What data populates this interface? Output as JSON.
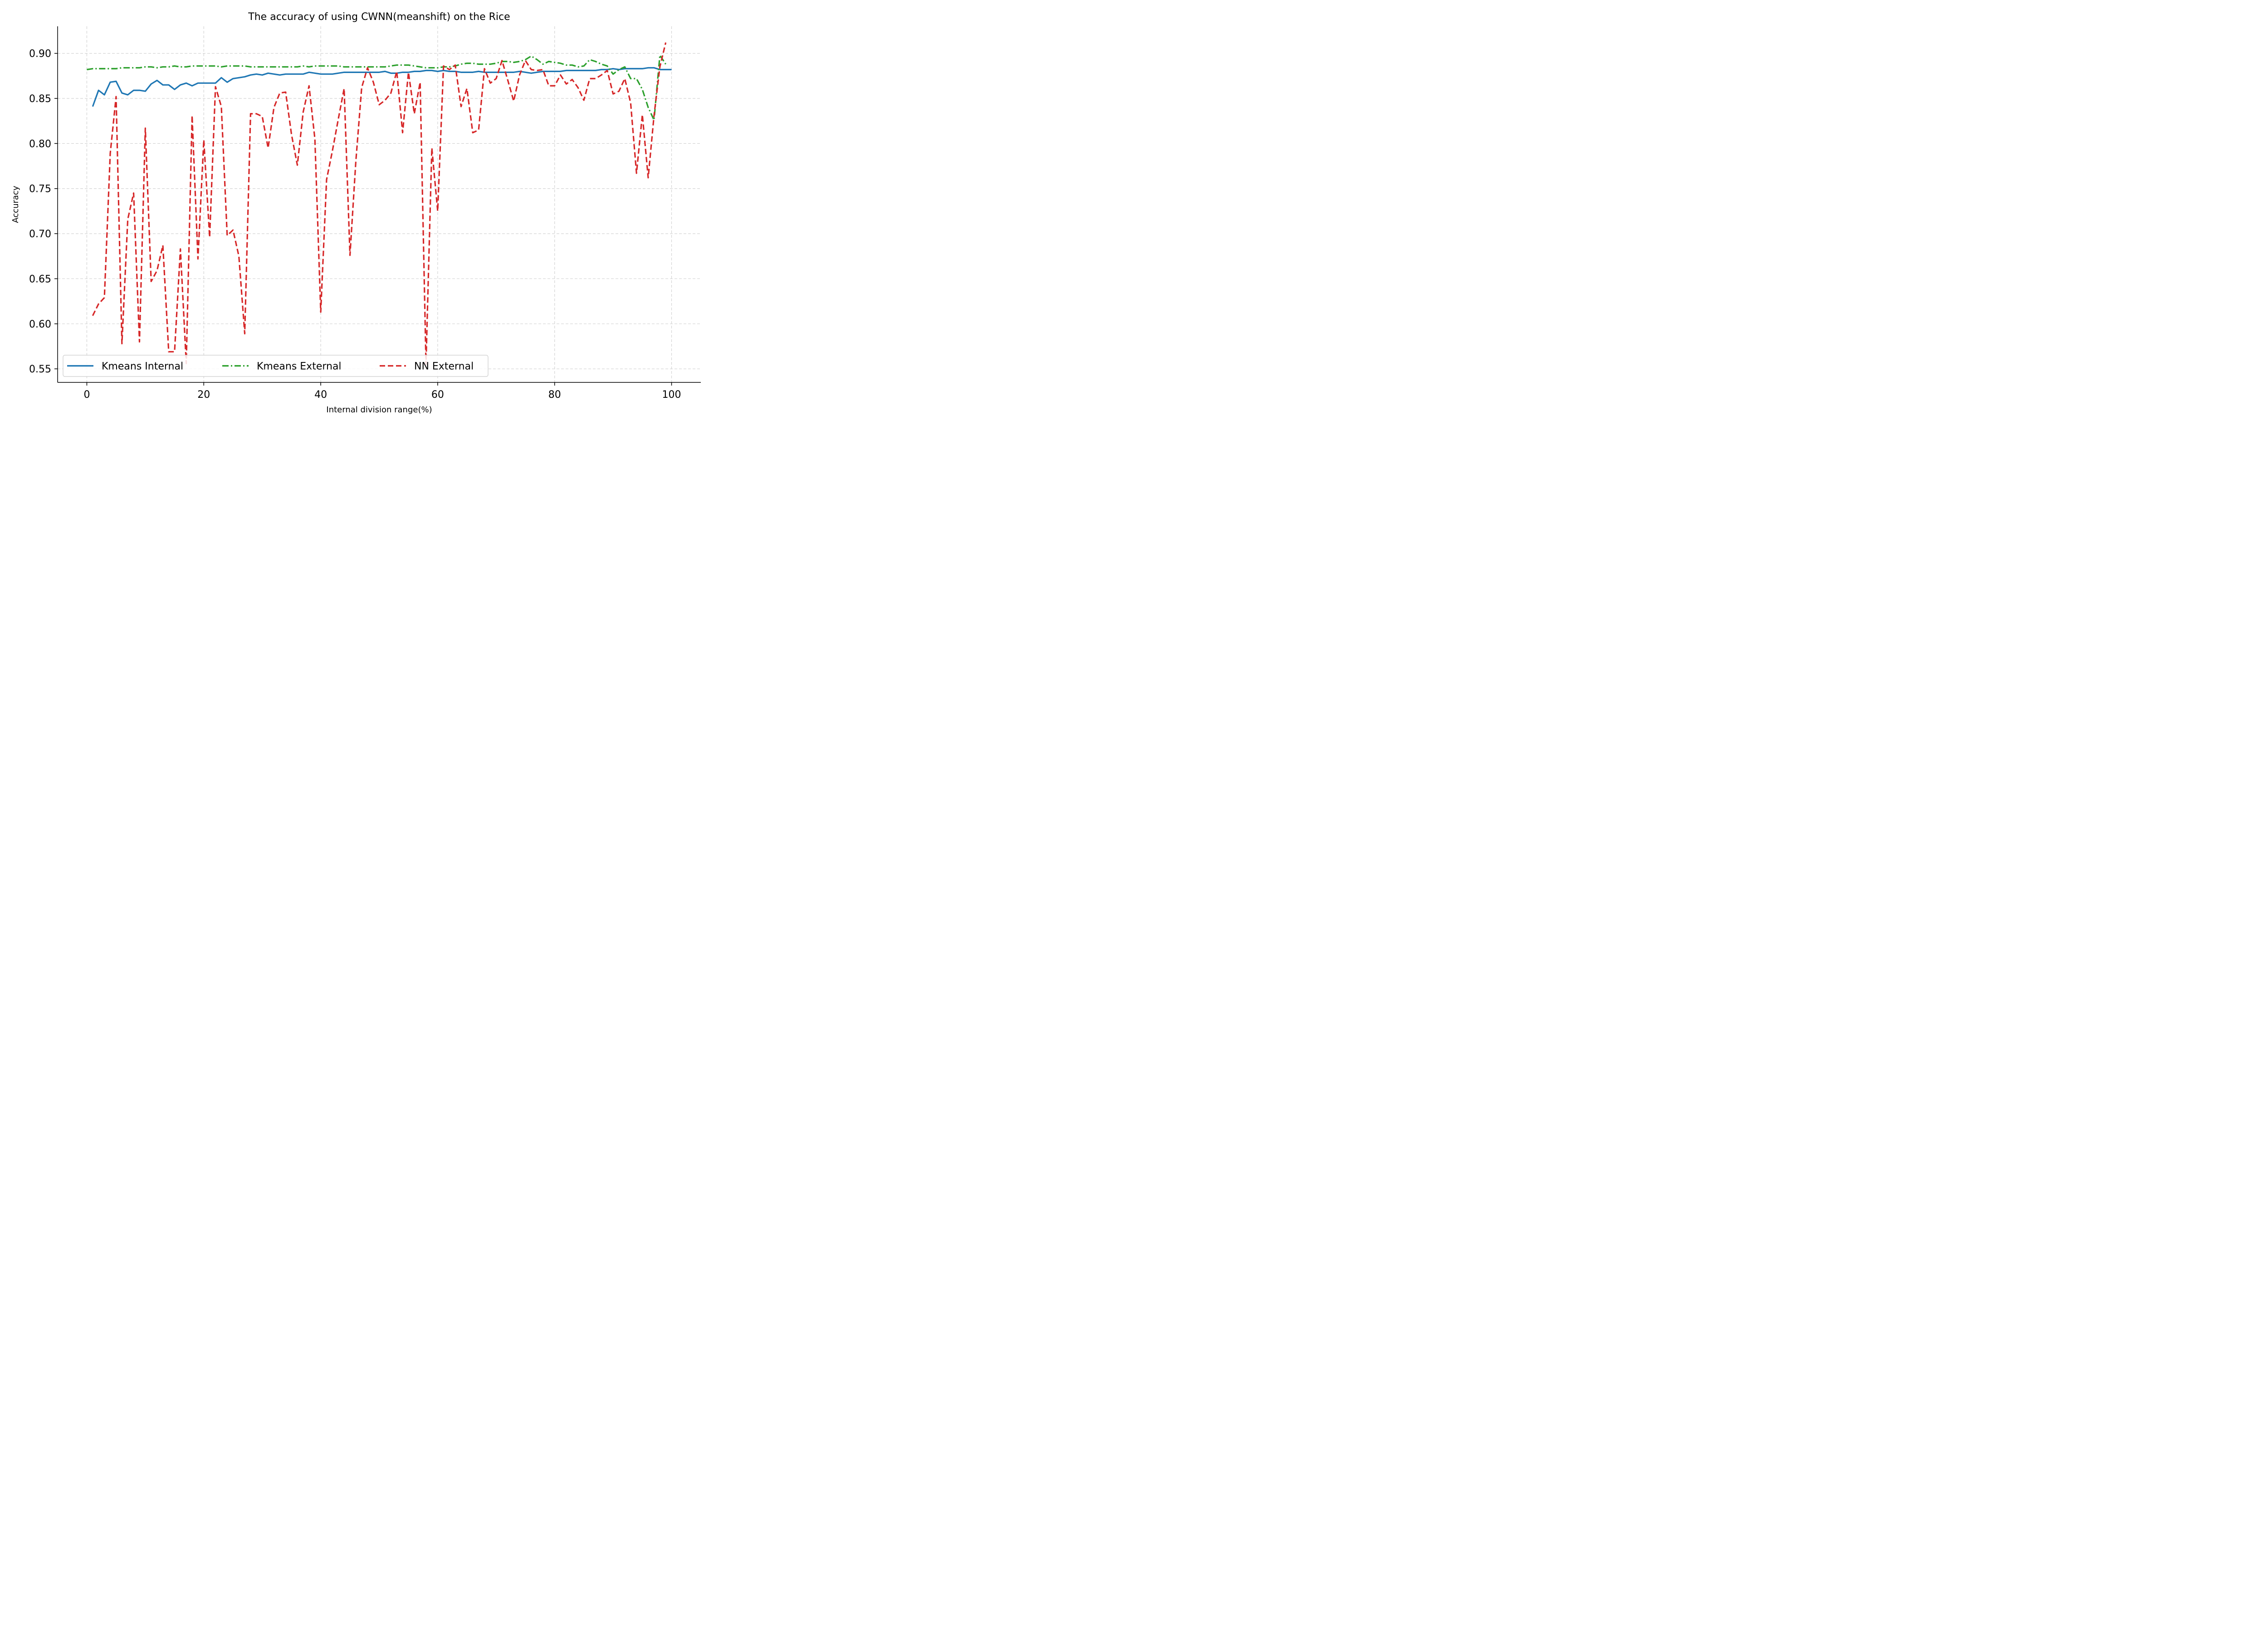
{
  "chart_data": {
    "type": "line",
    "title": "The accuracy of using CWNN(meanshift) on the Rice",
    "xlabel": "Internal division range(%)",
    "ylabel": "Accuracy",
    "xlim": [
      -5,
      105
    ],
    "ylim": [
      0.535,
      0.93
    ],
    "xticks": [
      0,
      20,
      40,
      60,
      80,
      100
    ],
    "yticks": [
      0.55,
      0.6,
      0.65,
      0.7,
      0.75,
      0.8,
      0.85,
      0.9
    ],
    "x_tick_labels": [
      "0",
      "20",
      "40",
      "60",
      "80",
      "100"
    ],
    "y_tick_labels": [
      "0.55",
      "0.60",
      "0.65",
      "0.70",
      "0.75",
      "0.80",
      "0.85",
      "0.90"
    ],
    "grid": true,
    "legend_position": "lower-left",
    "series": [
      {
        "name": "Kmeans Internal",
        "color": "#1f77b4",
        "style": "solid",
        "x": [
          1,
          2,
          3,
          4,
          5,
          6,
          7,
          8,
          9,
          10,
          11,
          12,
          13,
          14,
          15,
          16,
          17,
          18,
          19,
          20,
          21,
          22,
          23,
          24,
          25,
          26,
          27,
          28,
          29,
          30,
          31,
          32,
          33,
          34,
          35,
          36,
          37,
          38,
          39,
          40,
          41,
          42,
          43,
          44,
          45,
          46,
          47,
          48,
          49,
          50,
          51,
          52,
          53,
          54,
          55,
          56,
          57,
          58,
          59,
          60,
          61,
          62,
          63,
          64,
          65,
          66,
          67,
          68,
          69,
          70,
          71,
          72,
          73,
          74,
          75,
          76,
          77,
          78,
          79,
          80,
          81,
          82,
          83,
          84,
          85,
          86,
          87,
          88,
          89,
          90,
          91,
          92,
          93,
          94,
          95,
          96,
          97,
          98,
          99,
          100
        ],
        "values": [
          0.841,
          0.859,
          0.854,
          0.868,
          0.869,
          0.856,
          0.854,
          0.859,
          0.859,
          0.858,
          0.866,
          0.87,
          0.865,
          0.865,
          0.86,
          0.865,
          0.867,
          0.864,
          0.867,
          0.867,
          0.867,
          0.867,
          0.873,
          0.868,
          0.872,
          0.873,
          0.874,
          0.876,
          0.877,
          0.876,
          0.878,
          0.877,
          0.876,
          0.877,
          0.877,
          0.877,
          0.877,
          0.879,
          0.878,
          0.877,
          0.877,
          0.877,
          0.878,
          0.879,
          0.879,
          0.879,
          0.879,
          0.879,
          0.879,
          0.879,
          0.88,
          0.878,
          0.878,
          0.879,
          0.879,
          0.88,
          0.88,
          0.881,
          0.881,
          0.88,
          0.881,
          0.88,
          0.88,
          0.879,
          0.879,
          0.879,
          0.88,
          0.879,
          0.879,
          0.879,
          0.879,
          0.879,
          0.879,
          0.88,
          0.879,
          0.878,
          0.879,
          0.88,
          0.88,
          0.88,
          0.88,
          0.881,
          0.881,
          0.881,
          0.881,
          0.881,
          0.881,
          0.882,
          0.882,
          0.883,
          0.882,
          0.883,
          0.883,
          0.883,
          0.883,
          0.884,
          0.884,
          0.882,
          0.882,
          0.882
        ]
      },
      {
        "name": "Kmeans External",
        "color": "#2ca02c",
        "style": "dashdot",
        "x": [
          0,
          1,
          2,
          3,
          4,
          5,
          6,
          7,
          8,
          9,
          10,
          11,
          12,
          13,
          14,
          15,
          16,
          17,
          18,
          19,
          20,
          21,
          22,
          23,
          24,
          25,
          26,
          27,
          28,
          29,
          30,
          31,
          32,
          33,
          34,
          35,
          36,
          37,
          38,
          39,
          40,
          41,
          42,
          43,
          44,
          45,
          46,
          47,
          48,
          49,
          50,
          51,
          52,
          53,
          54,
          55,
          56,
          57,
          58,
          59,
          60,
          61,
          62,
          63,
          64,
          65,
          66,
          67,
          68,
          69,
          70,
          71,
          72,
          73,
          74,
          75,
          76,
          77,
          78,
          79,
          80,
          81,
          82,
          83,
          84,
          85,
          86,
          87,
          88,
          89,
          90,
          91,
          92,
          93,
          94,
          95,
          96,
          97,
          98,
          99
        ],
        "values": [
          0.882,
          0.883,
          0.883,
          0.883,
          0.883,
          0.883,
          0.884,
          0.884,
          0.884,
          0.884,
          0.885,
          0.885,
          0.884,
          0.885,
          0.885,
          0.886,
          0.885,
          0.885,
          0.886,
          0.886,
          0.886,
          0.886,
          0.886,
          0.885,
          0.886,
          0.886,
          0.886,
          0.886,
          0.885,
          0.885,
          0.885,
          0.885,
          0.885,
          0.885,
          0.885,
          0.885,
          0.885,
          0.886,
          0.885,
          0.886,
          0.886,
          0.886,
          0.886,
          0.886,
          0.885,
          0.885,
          0.885,
          0.885,
          0.885,
          0.885,
          0.885,
          0.885,
          0.886,
          0.887,
          0.887,
          0.887,
          0.886,
          0.885,
          0.884,
          0.884,
          0.884,
          0.885,
          0.885,
          0.886,
          0.888,
          0.889,
          0.889,
          0.888,
          0.888,
          0.888,
          0.889,
          0.891,
          0.891,
          0.89,
          0.891,
          0.893,
          0.897,
          0.893,
          0.888,
          0.891,
          0.89,
          0.889,
          0.887,
          0.887,
          0.885,
          0.886,
          0.893,
          0.891,
          0.888,
          0.886,
          0.877,
          0.882,
          0.885,
          0.872,
          0.872,
          0.86,
          0.84,
          0.826,
          0.898,
          0.888
        ]
      },
      {
        "name": "NN External",
        "color": "#d62728",
        "style": "dashed",
        "x": [
          1,
          2,
          3,
          4,
          5,
          6,
          7,
          8,
          9,
          10,
          11,
          12,
          13,
          14,
          15,
          16,
          17,
          18,
          19,
          20,
          21,
          22,
          23,
          24,
          25,
          26,
          27,
          28,
          29,
          30,
          31,
          32,
          33,
          34,
          35,
          36,
          37,
          38,
          39,
          40,
          41,
          42,
          43,
          44,
          45,
          46,
          47,
          48,
          49,
          50,
          51,
          52,
          53,
          54,
          55,
          56,
          57,
          58,
          59,
          60,
          61,
          62,
          63,
          64,
          65,
          66,
          67,
          68,
          69,
          70,
          71,
          72,
          73,
          74,
          75,
          76,
          77,
          78,
          79,
          80,
          81,
          82,
          83,
          84,
          85,
          86,
          87,
          88,
          89,
          90,
          91,
          92,
          93,
          94,
          95,
          96,
          97,
          98,
          99
        ],
        "values": [
          0.609,
          0.622,
          0.629,
          0.789,
          0.852,
          0.578,
          0.716,
          0.745,
          0.58,
          0.817,
          0.647,
          0.659,
          0.687,
          0.569,
          0.569,
          0.683,
          0.556,
          0.831,
          0.672,
          0.804,
          0.696,
          0.863,
          0.841,
          0.698,
          0.704,
          0.675,
          0.589,
          0.833,
          0.833,
          0.83,
          0.795,
          0.84,
          0.856,
          0.857,
          0.81,
          0.776,
          0.835,
          0.864,
          0.805,
          0.613,
          0.76,
          0.792,
          0.827,
          0.861,
          0.676,
          0.78,
          0.862,
          0.884,
          0.868,
          0.843,
          0.848,
          0.856,
          0.88,
          0.812,
          0.879,
          0.833,
          0.868,
          0.555,
          0.795,
          0.725,
          0.886,
          0.882,
          0.887,
          0.841,
          0.861,
          0.812,
          0.815,
          0.883,
          0.867,
          0.872,
          0.892,
          0.87,
          0.847,
          0.876,
          0.892,
          0.882,
          0.881,
          0.882,
          0.864,
          0.864,
          0.876,
          0.866,
          0.871,
          0.862,
          0.848,
          0.872,
          0.872,
          0.876,
          0.881,
          0.855,
          0.858,
          0.872,
          0.845,
          0.767,
          0.832,
          0.762,
          0.831,
          0.885,
          0.912
        ]
      }
    ]
  }
}
